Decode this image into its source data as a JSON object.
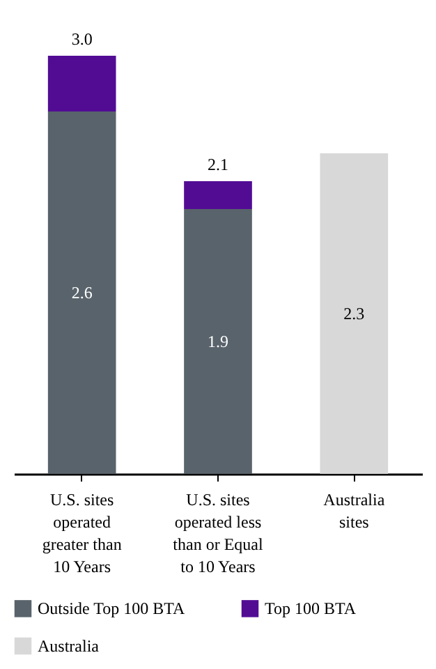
{
  "chart_data": {
    "type": "bar",
    "stacked": true,
    "categories": [
      "U.S. sites operated greater than 10 Years",
      "U.S. sites operated less than or Equal to 10 Years",
      "Australia sites"
    ],
    "series": [
      {
        "name": "Outside Top 100 BTA",
        "color": "#59636b",
        "values": [
          2.6,
          1.9,
          null
        ],
        "value_labels": [
          "2.6",
          "1.9",
          null
        ]
      },
      {
        "name": "Top 100 BTA",
        "color": "#520c94",
        "values": [
          0.4,
          0.2,
          null
        ],
        "value_labels": [
          null,
          null,
          null
        ]
      },
      {
        "name": "Australia",
        "color": "#d8d8d8",
        "values": [
          null,
          null,
          2.3
        ],
        "value_labels": [
          null,
          null,
          "2.3"
        ]
      }
    ],
    "totals": [
      "3.0",
      "2.1",
      null
    ],
    "legend": "bottom",
    "grid": false
  }
}
